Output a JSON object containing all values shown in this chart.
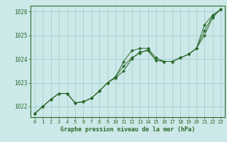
{
  "x": [
    0,
    1,
    2,
    3,
    4,
    5,
    6,
    7,
    8,
    9,
    10,
    11,
    12,
    13,
    14,
    15,
    16,
    17,
    18,
    19,
    20,
    21,
    22,
    23
  ],
  "series1": [
    1021.7,
    1022.0,
    1022.3,
    1022.55,
    1022.55,
    1022.15,
    1022.2,
    1022.35,
    1022.65,
    1023.0,
    1023.25,
    1023.9,
    1024.35,
    1024.45,
    1024.45,
    1024.05,
    1023.9,
    1023.9,
    1024.05,
    1024.2,
    1024.45,
    1025.45,
    1025.85,
    1026.1
  ],
  "series2": [
    1021.7,
    1022.0,
    1022.3,
    1022.55,
    1022.55,
    1022.15,
    1022.2,
    1022.35,
    1022.65,
    1023.0,
    1023.25,
    1023.7,
    1024.05,
    1024.25,
    1024.4,
    1023.95,
    1023.9,
    1023.9,
    1024.05,
    1024.2,
    1024.45,
    1025.2,
    1025.8,
    1026.1
  ],
  "series3": [
    1021.7,
    1022.0,
    1022.3,
    1022.55,
    1022.55,
    1022.15,
    1022.2,
    1022.35,
    1022.65,
    1023.0,
    1023.2,
    1023.5,
    1024.0,
    1024.3,
    1024.35,
    1023.95,
    1023.9,
    1023.9,
    1024.05,
    1024.2,
    1024.45,
    1025.0,
    1025.75,
    1026.1
  ],
  "line_color": "#2d6a2d",
  "marker_color": "#2d6a2d",
  "bg_color": "#cce8e8",
  "grid_color": "#99cccc",
  "axis_color": "#2d6a2d",
  "xlabel": "Graphe pression niveau de la mer (hPa)",
  "yticks": [
    1022,
    1023,
    1024,
    1025,
    1026
  ],
  "xticks": [
    0,
    1,
    2,
    3,
    4,
    5,
    6,
    7,
    8,
    9,
    10,
    11,
    12,
    13,
    14,
    15,
    16,
    17,
    18,
    19,
    20,
    21,
    22,
    23
  ],
  "ylim": [
    1021.55,
    1026.25
  ],
  "xlim": [
    -0.5,
    23.5
  ]
}
